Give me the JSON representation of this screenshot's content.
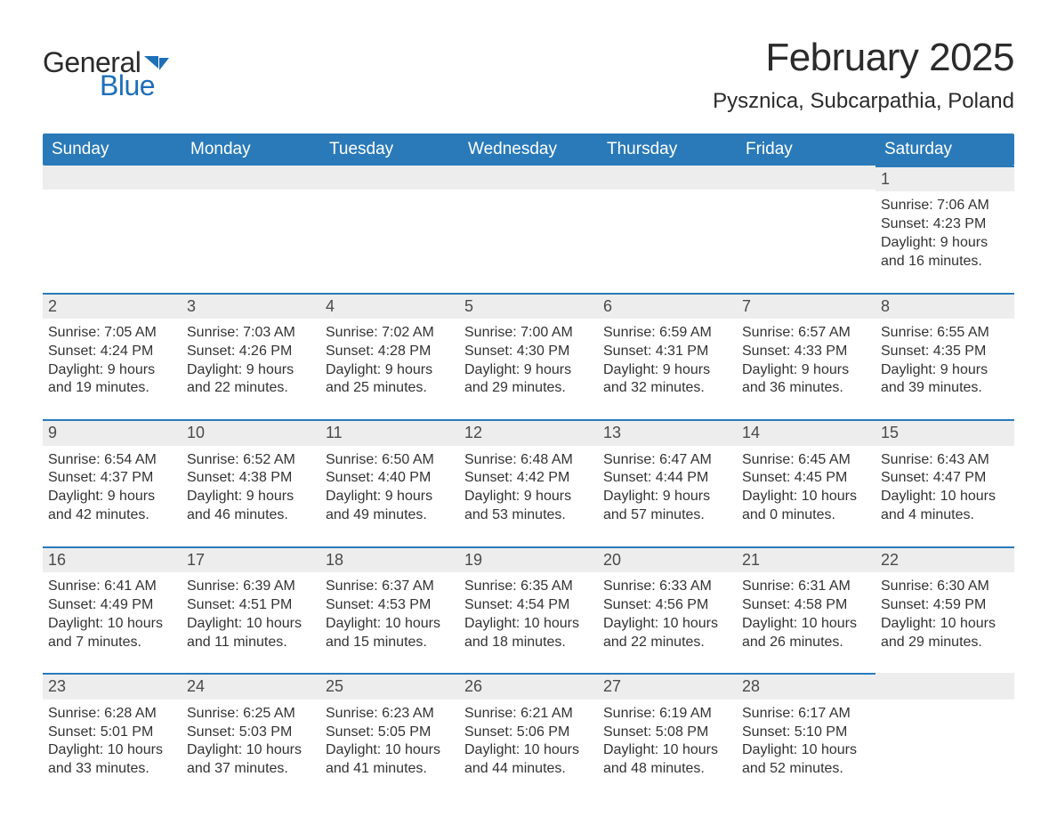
{
  "brand": {
    "word1": "General",
    "word2": "Blue",
    "text_color": "#2b2b2b",
    "accent_color": "#1d6fb8"
  },
  "title": {
    "month_year": "February 2025",
    "location": "Pysznica, Subcarpathia, Poland",
    "title_fontsize": 44,
    "location_fontsize": 24
  },
  "colors": {
    "header_bg": "#2a7ab9",
    "header_text": "#ffffff",
    "daynum_bg": "#ededed",
    "daynum_border": "#2a7ab9",
    "body_text": "#333333",
    "page_bg": "#ffffff"
  },
  "layout": {
    "columns": 7,
    "body_fontsize": 16,
    "header_fontsize": 19,
    "daynum_fontsize": 18
  },
  "weekdays": [
    "Sunday",
    "Monday",
    "Tuesday",
    "Wednesday",
    "Thursday",
    "Friday",
    "Saturday"
  ],
  "weeks": [
    [
      null,
      null,
      null,
      null,
      null,
      null,
      {
        "n": "1",
        "sunrise": "Sunrise: 7:06 AM",
        "sunset": "Sunset: 4:23 PM",
        "dl1": "Daylight: 9 hours",
        "dl2": "and 16 minutes."
      }
    ],
    [
      {
        "n": "2",
        "sunrise": "Sunrise: 7:05 AM",
        "sunset": "Sunset: 4:24 PM",
        "dl1": "Daylight: 9 hours",
        "dl2": "and 19 minutes."
      },
      {
        "n": "3",
        "sunrise": "Sunrise: 7:03 AM",
        "sunset": "Sunset: 4:26 PM",
        "dl1": "Daylight: 9 hours",
        "dl2": "and 22 minutes."
      },
      {
        "n": "4",
        "sunrise": "Sunrise: 7:02 AM",
        "sunset": "Sunset: 4:28 PM",
        "dl1": "Daylight: 9 hours",
        "dl2": "and 25 minutes."
      },
      {
        "n": "5",
        "sunrise": "Sunrise: 7:00 AM",
        "sunset": "Sunset: 4:30 PM",
        "dl1": "Daylight: 9 hours",
        "dl2": "and 29 minutes."
      },
      {
        "n": "6",
        "sunrise": "Sunrise: 6:59 AM",
        "sunset": "Sunset: 4:31 PM",
        "dl1": "Daylight: 9 hours",
        "dl2": "and 32 minutes."
      },
      {
        "n": "7",
        "sunrise": "Sunrise: 6:57 AM",
        "sunset": "Sunset: 4:33 PM",
        "dl1": "Daylight: 9 hours",
        "dl2": "and 36 minutes."
      },
      {
        "n": "8",
        "sunrise": "Sunrise: 6:55 AM",
        "sunset": "Sunset: 4:35 PM",
        "dl1": "Daylight: 9 hours",
        "dl2": "and 39 minutes."
      }
    ],
    [
      {
        "n": "9",
        "sunrise": "Sunrise: 6:54 AM",
        "sunset": "Sunset: 4:37 PM",
        "dl1": "Daylight: 9 hours",
        "dl2": "and 42 minutes."
      },
      {
        "n": "10",
        "sunrise": "Sunrise: 6:52 AM",
        "sunset": "Sunset: 4:38 PM",
        "dl1": "Daylight: 9 hours",
        "dl2": "and 46 minutes."
      },
      {
        "n": "11",
        "sunrise": "Sunrise: 6:50 AM",
        "sunset": "Sunset: 4:40 PM",
        "dl1": "Daylight: 9 hours",
        "dl2": "and 49 minutes."
      },
      {
        "n": "12",
        "sunrise": "Sunrise: 6:48 AM",
        "sunset": "Sunset: 4:42 PM",
        "dl1": "Daylight: 9 hours",
        "dl2": "and 53 minutes."
      },
      {
        "n": "13",
        "sunrise": "Sunrise: 6:47 AM",
        "sunset": "Sunset: 4:44 PM",
        "dl1": "Daylight: 9 hours",
        "dl2": "and 57 minutes."
      },
      {
        "n": "14",
        "sunrise": "Sunrise: 6:45 AM",
        "sunset": "Sunset: 4:45 PM",
        "dl1": "Daylight: 10 hours",
        "dl2": "and 0 minutes."
      },
      {
        "n": "15",
        "sunrise": "Sunrise: 6:43 AM",
        "sunset": "Sunset: 4:47 PM",
        "dl1": "Daylight: 10 hours",
        "dl2": "and 4 minutes."
      }
    ],
    [
      {
        "n": "16",
        "sunrise": "Sunrise: 6:41 AM",
        "sunset": "Sunset: 4:49 PM",
        "dl1": "Daylight: 10 hours",
        "dl2": "and 7 minutes."
      },
      {
        "n": "17",
        "sunrise": "Sunrise: 6:39 AM",
        "sunset": "Sunset: 4:51 PM",
        "dl1": "Daylight: 10 hours",
        "dl2": "and 11 minutes."
      },
      {
        "n": "18",
        "sunrise": "Sunrise: 6:37 AM",
        "sunset": "Sunset: 4:53 PM",
        "dl1": "Daylight: 10 hours",
        "dl2": "and 15 minutes."
      },
      {
        "n": "19",
        "sunrise": "Sunrise: 6:35 AM",
        "sunset": "Sunset: 4:54 PM",
        "dl1": "Daylight: 10 hours",
        "dl2": "and 18 minutes."
      },
      {
        "n": "20",
        "sunrise": "Sunrise: 6:33 AM",
        "sunset": "Sunset: 4:56 PM",
        "dl1": "Daylight: 10 hours",
        "dl2": "and 22 minutes."
      },
      {
        "n": "21",
        "sunrise": "Sunrise: 6:31 AM",
        "sunset": "Sunset: 4:58 PM",
        "dl1": "Daylight: 10 hours",
        "dl2": "and 26 minutes."
      },
      {
        "n": "22",
        "sunrise": "Sunrise: 6:30 AM",
        "sunset": "Sunset: 4:59 PM",
        "dl1": "Daylight: 10 hours",
        "dl2": "and 29 minutes."
      }
    ],
    [
      {
        "n": "23",
        "sunrise": "Sunrise: 6:28 AM",
        "sunset": "Sunset: 5:01 PM",
        "dl1": "Daylight: 10 hours",
        "dl2": "and 33 minutes."
      },
      {
        "n": "24",
        "sunrise": "Sunrise: 6:25 AM",
        "sunset": "Sunset: 5:03 PM",
        "dl1": "Daylight: 10 hours",
        "dl2": "and 37 minutes."
      },
      {
        "n": "25",
        "sunrise": "Sunrise: 6:23 AM",
        "sunset": "Sunset: 5:05 PM",
        "dl1": "Daylight: 10 hours",
        "dl2": "and 41 minutes."
      },
      {
        "n": "26",
        "sunrise": "Sunrise: 6:21 AM",
        "sunset": "Sunset: 5:06 PM",
        "dl1": "Daylight: 10 hours",
        "dl2": "and 44 minutes."
      },
      {
        "n": "27",
        "sunrise": "Sunrise: 6:19 AM",
        "sunset": "Sunset: 5:08 PM",
        "dl1": "Daylight: 10 hours",
        "dl2": "and 48 minutes."
      },
      {
        "n": "28",
        "sunrise": "Sunrise: 6:17 AM",
        "sunset": "Sunset: 5:10 PM",
        "dl1": "Daylight: 10 hours",
        "dl2": "and 52 minutes."
      },
      null
    ]
  ]
}
